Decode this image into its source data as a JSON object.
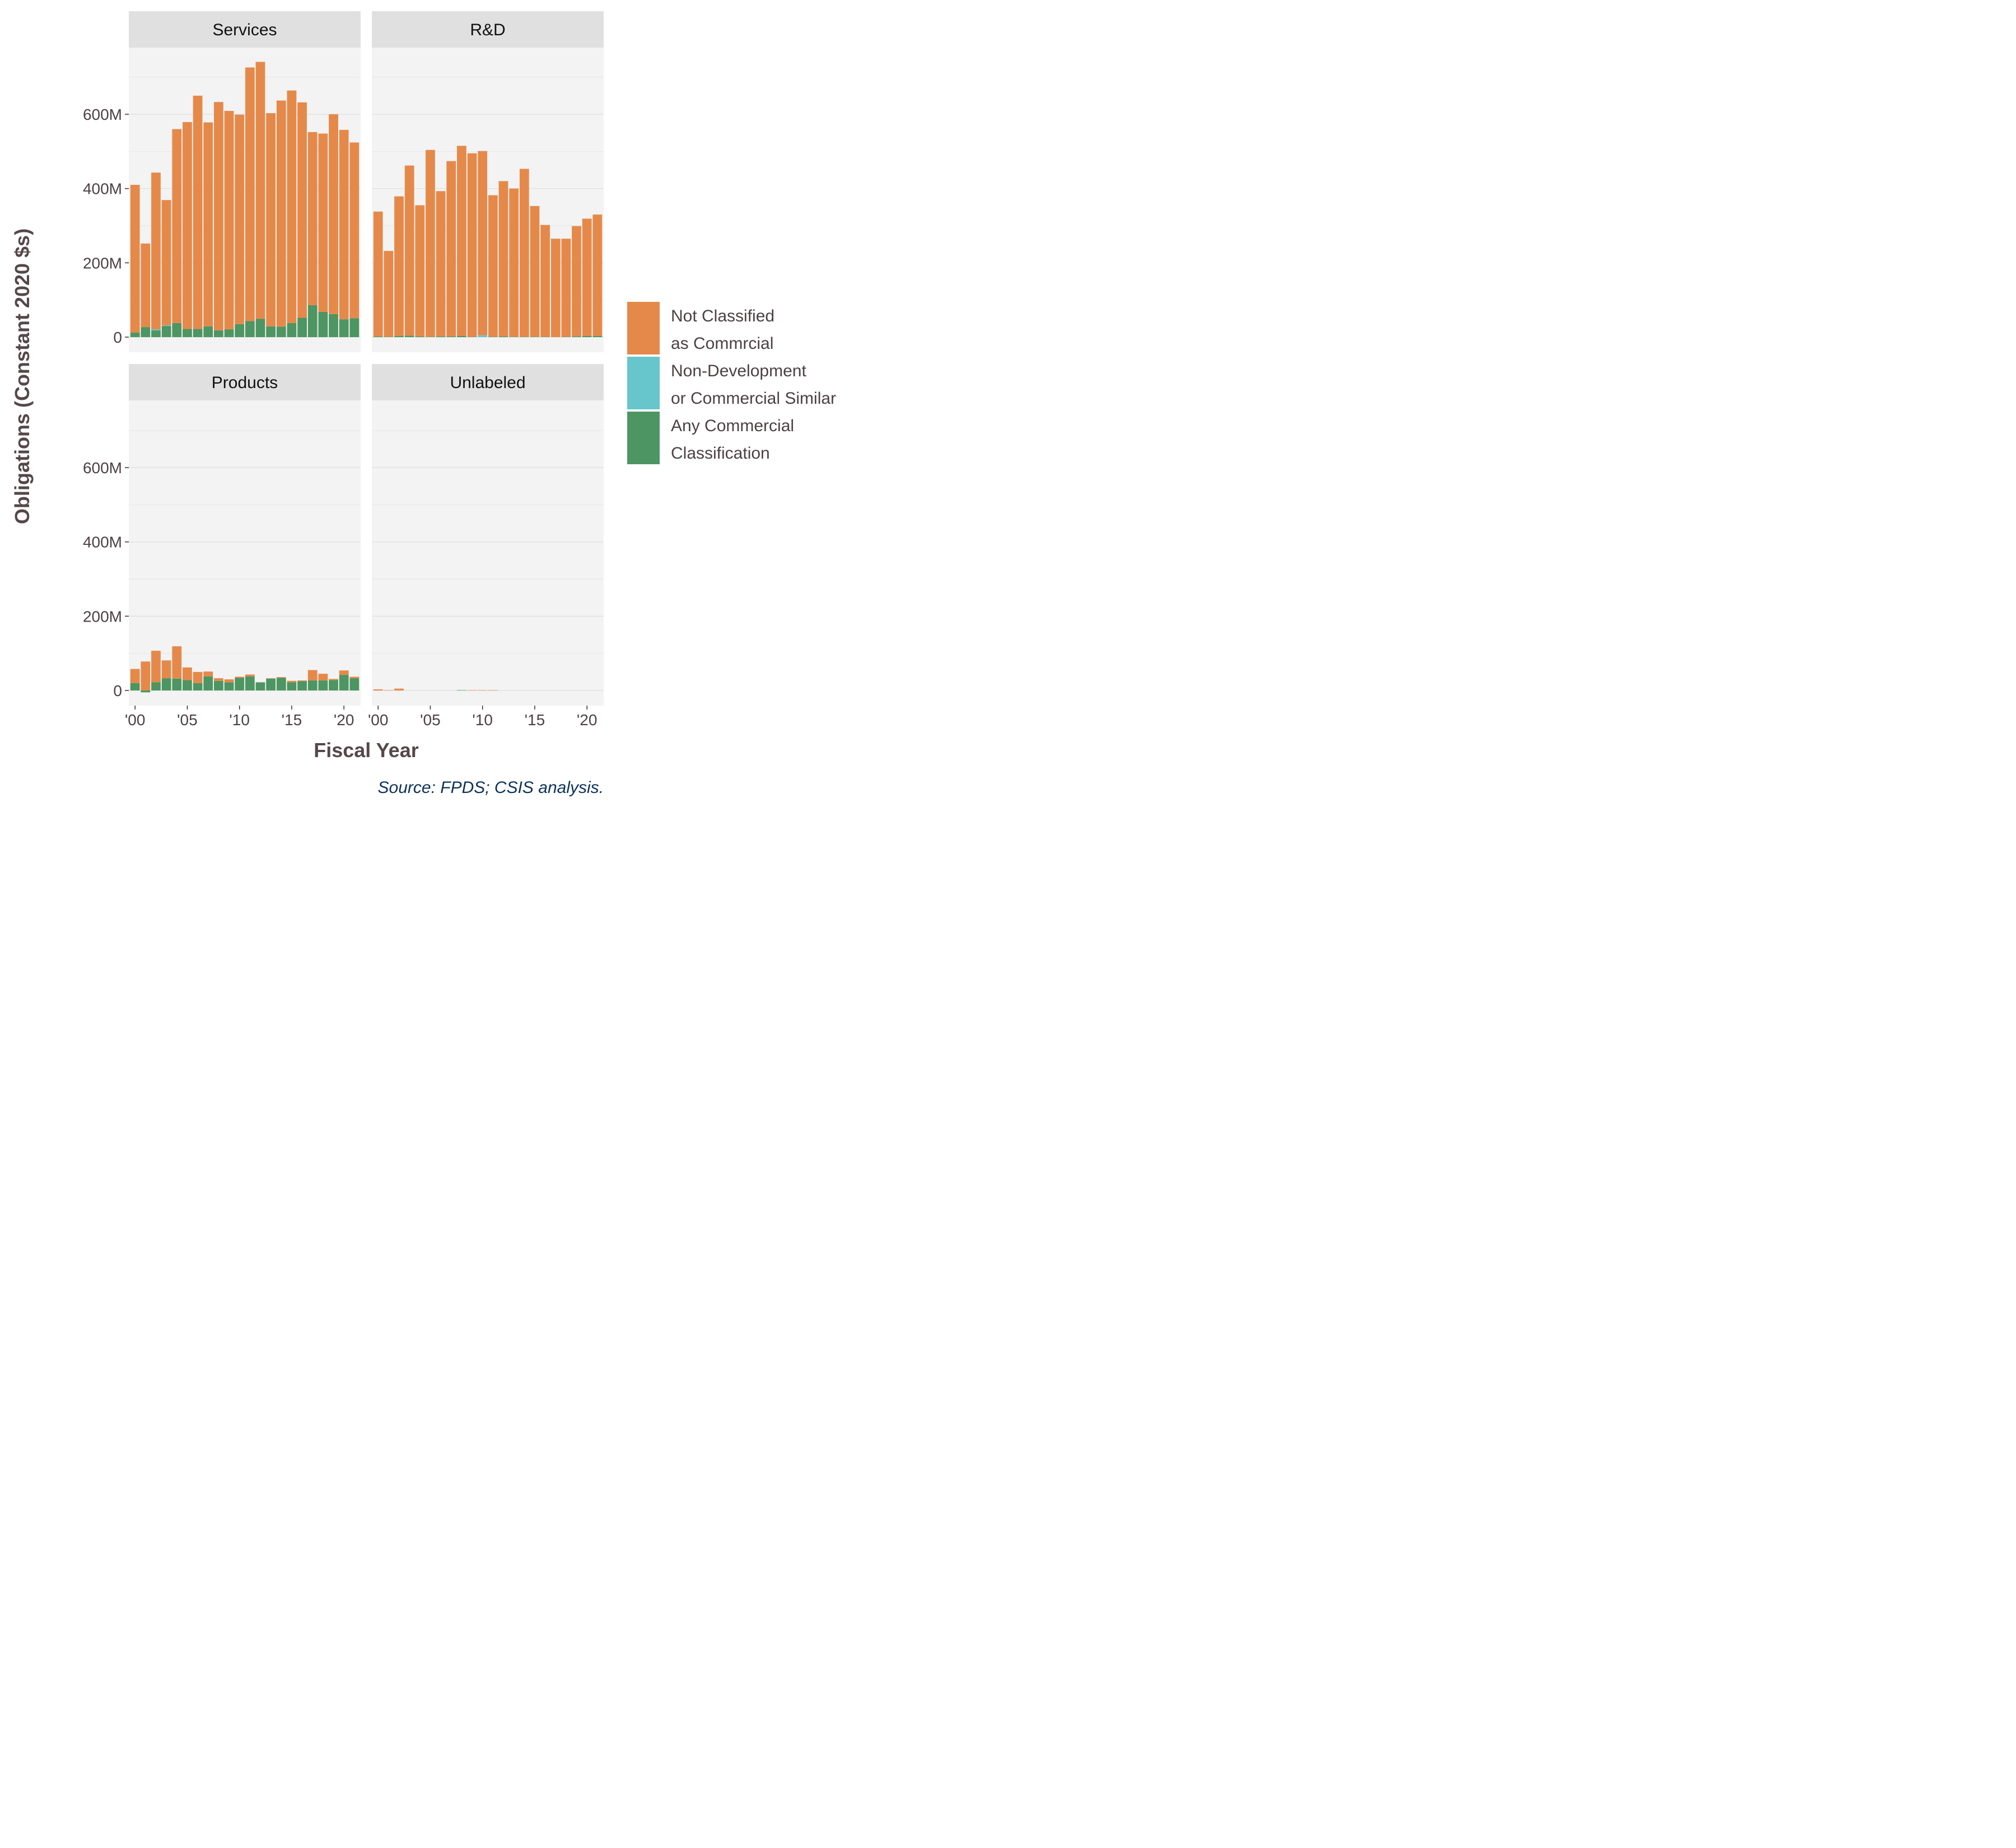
{
  "chart_data": {
    "type": "bar",
    "stacked": true,
    "facets": [
      "Services",
      "R&D",
      "Products",
      "Unlabeled"
    ],
    "x": [
      2000,
      2001,
      2002,
      2003,
      2004,
      2005,
      2006,
      2007,
      2008,
      2009,
      2010,
      2011,
      2012,
      2013,
      2014,
      2015,
      2016,
      2017,
      2018,
      2019,
      2020,
      2021
    ],
    "x_tick_labels": [
      "'00",
      "'05",
      "'10",
      "'15",
      "'20"
    ],
    "x_tick_values": [
      2000,
      2005,
      2010,
      2015,
      2020
    ],
    "y_tick_labels": [
      "0",
      "200M",
      "400M",
      "600M"
    ],
    "y_tick_values": [
      0,
      200,
      400,
      600
    ],
    "ylim": [
      -40,
      820
    ],
    "y_units": "millions of constant 2020 dollars",
    "xlabel": "Fiscal Year",
    "ylabel": "Obligations (Constant 2020 $s)",
    "caption": "Source: FPDS; CSIS analysis.",
    "legend_position": "right",
    "legend": [
      {
        "key": "not_classified",
        "lines": [
          "Not Classified",
          "as Commrcial"
        ],
        "color": "#e5894a"
      },
      {
        "key": "non_dev",
        "lines": [
          "Non-Development",
          "or Commercial Similar"
        ],
        "color": "#67c6cb"
      },
      {
        "key": "any_commercial",
        "lines": [
          "Any Commercial",
          "Classification"
        ],
        "color": "#4d9562"
      }
    ],
    "panels": {
      "Services": {
        "any_commercial": [
          12,
          27,
          18,
          30,
          38,
          22,
          22,
          29,
          18,
          21,
          35,
          43,
          49,
          29,
          28,
          38,
          52,
          86,
          68,
          62,
          48,
          51
        ],
        "non_dev": [
          0,
          0,
          3,
          2,
          0,
          0,
          0,
          0,
          0,
          0,
          0,
          0,
          0,
          0,
          0,
          0,
          0,
          0,
          0,
          0,
          0,
          0
        ],
        "not_classified": [
          398,
          225,
          422,
          337,
          522,
          557,
          628,
          549,
          615,
          588,
          564,
          683,
          692,
          574,
          609,
          626,
          580,
          466,
          480,
          538,
          510,
          473
        ]
      },
      "R&D": {
        "any_commercial": [
          2,
          1,
          3,
          4,
          2,
          1,
          2,
          2,
          3,
          1,
          0,
          1,
          2,
          1,
          1,
          1,
          1,
          0,
          1,
          2,
          3,
          3
        ],
        "non_dev": [
          0,
          0,
          0,
          0,
          0,
          0,
          0,
          0,
          0,
          0,
          5,
          0,
          0,
          0,
          0,
          0,
          0,
          0,
          0,
          0,
          0,
          0
        ],
        "not_classified": [
          336,
          231,
          376,
          458,
          353,
          503,
          391,
          472,
          512,
          494,
          496,
          381,
          418,
          399,
          452,
          352,
          301,
          265,
          264,
          297,
          316,
          327
        ]
      },
      "Products": {
        "any_commercial": [
          20,
          -5,
          22,
          33,
          32,
          28,
          20,
          38,
          26,
          22,
          34,
          38,
          22,
          32,
          34,
          22,
          25,
          27,
          27,
          28,
          42,
          33
        ],
        "non_dev": [
          0,
          0,
          0,
          0,
          0,
          0,
          0,
          0,
          0,
          0,
          0,
          0,
          0,
          0,
          0,
          0,
          0,
          0,
          0,
          0,
          0,
          0
        ],
        "not_classified": [
          38,
          78,
          85,
          48,
          87,
          34,
          30,
          13,
          7,
          8,
          3,
          5,
          0,
          1,
          2,
          4,
          2,
          28,
          18,
          3,
          12,
          4
        ]
      },
      "Unlabeled": {
        "any_commercial": [
          0,
          0,
          0,
          0,
          0,
          0,
          0,
          0,
          1,
          0,
          0,
          0,
          0,
          0,
          0,
          0,
          0,
          0,
          0,
          0,
          0,
          0
        ],
        "non_dev": [
          0,
          0,
          0,
          0,
          0,
          0,
          0,
          0,
          0,
          0,
          0,
          0,
          0,
          0,
          0,
          0,
          0,
          0,
          0,
          0,
          0,
          0
        ],
        "not_classified": [
          3,
          1,
          5,
          0,
          0,
          0,
          0,
          0,
          0,
          1,
          1,
          1,
          0,
          0,
          0,
          0,
          0,
          0,
          0,
          0,
          0,
          0
        ]
      }
    }
  }
}
